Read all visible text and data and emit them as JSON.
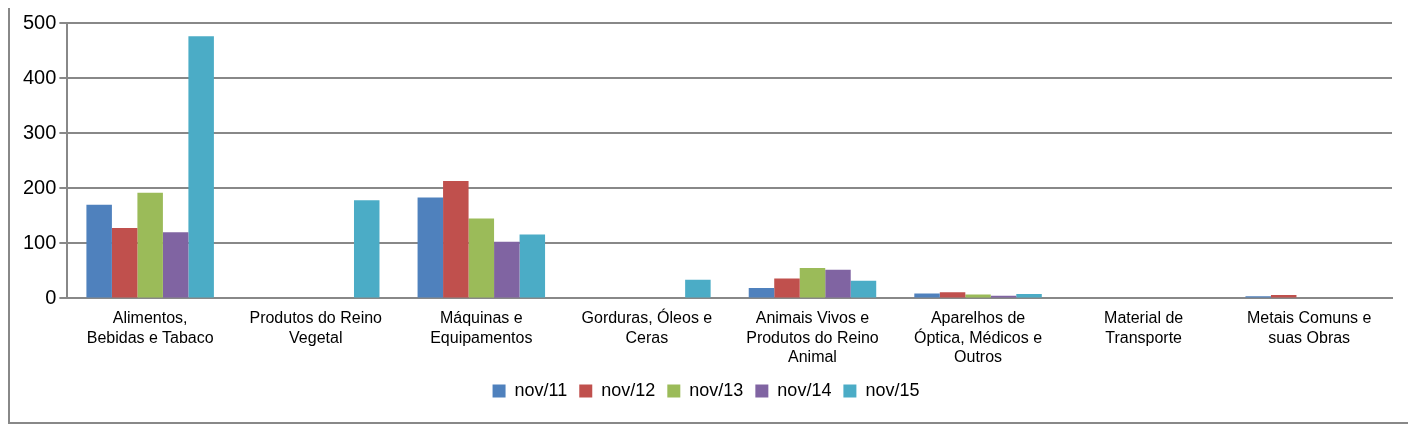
{
  "chart_data": {
    "type": "bar",
    "categories": [
      "Alimentos, Bebidas e Tabaco",
      "Produtos do Reino Vegetal",
      "Máquinas e Equipamentos",
      "Gorduras, Óleos e Ceras",
      "Animais Vivos e Produtos do Reino Animal",
      "Aparelhos de Óptica, Médicos e Outros",
      "Material de Transporte",
      "Metais Comuns e suas Obras"
    ],
    "series": [
      {
        "name": "nov/11",
        "color": "#4f81bd",
        "values": [
          170,
          0,
          183,
          0,
          19,
          9,
          0,
          4
        ]
      },
      {
        "name": "nov/12",
        "color": "#c0504d",
        "values": [
          128,
          0,
          213,
          0,
          36,
          11,
          0,
          6
        ]
      },
      {
        "name": "nov/13",
        "color": "#9bbb59",
        "values": [
          192,
          0,
          145,
          0,
          55,
          7,
          0,
          0
        ]
      },
      {
        "name": "nov/14",
        "color": "#8064a2",
        "values": [
          120,
          0,
          103,
          0,
          52,
          5,
          0,
          0
        ]
      },
      {
        "name": "nov/15",
        "color": "#4bacc6",
        "values": [
          476,
          178,
          116,
          34,
          32,
          8,
          0,
          0
        ]
      }
    ],
    "ylim": [
      0,
      500
    ],
    "yticks": [
      0,
      100,
      200,
      300,
      400,
      500
    ],
    "grid": "y",
    "legend": "bottom"
  }
}
